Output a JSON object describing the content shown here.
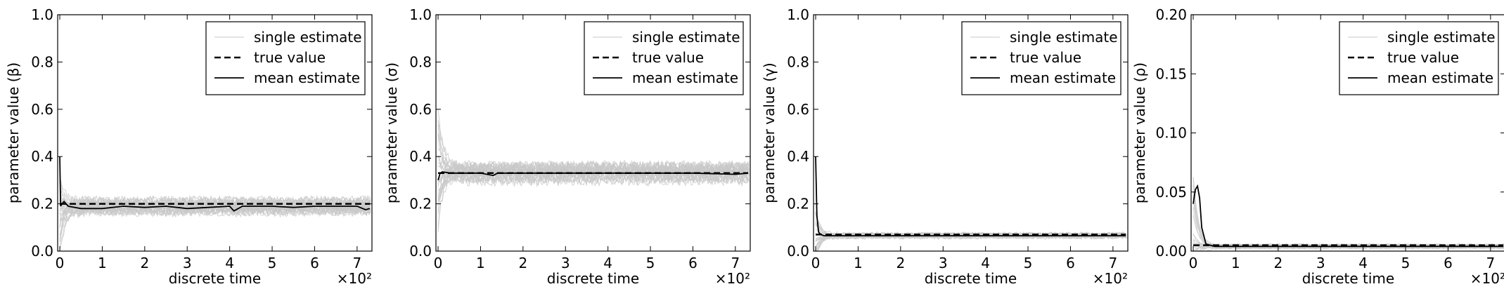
{
  "chart_data": [
    {
      "type": "line",
      "xlabel": "discrete time",
      "ylabel": "parameter value (β)",
      "ylabel_symbol": "β",
      "x_scale_text": "×10²",
      "xlim": [
        -0.05,
        7.35
      ],
      "ylim": [
        0.0,
        1.0
      ],
      "xticks": [
        "0",
        "1",
        "2",
        "3",
        "4",
        "5",
        "6",
        "7"
      ],
      "yticks": [
        "0.0",
        "0.2",
        "0.4",
        "0.6",
        "0.8",
        "1.0"
      ],
      "legend": [
        "single estimate",
        "true value",
        "mean estimate"
      ],
      "legend_position": "top-right",
      "grid": false,
      "true_value": 0.2,
      "mean_estimate": {
        "x": [
          0,
          0.02,
          0.05,
          0.1,
          0.2,
          0.5,
          1,
          1.5,
          2,
          2.5,
          3,
          3.5,
          4,
          4.1,
          4.3,
          4.5,
          5,
          5.5,
          6,
          6.5,
          7,
          7.2,
          7.3
        ],
        "y": [
          0.4,
          0.19,
          0.2,
          0.21,
          0.19,
          0.18,
          0.18,
          0.19,
          0.185,
          0.19,
          0.18,
          0.185,
          0.19,
          0.17,
          0.19,
          0.19,
          0.19,
          0.185,
          0.19,
          0.19,
          0.19,
          0.175,
          0.18
        ]
      },
      "single_estimates_band": {
        "center": 0.19,
        "half_width": 0.04,
        "early_spread": 0.2
      },
      "colors": {
        "single": "#c8c8c8",
        "true": "#000000",
        "mean": "#000000"
      }
    },
    {
      "type": "line",
      "xlabel": "discrete time",
      "ylabel": "parameter value (σ)",
      "ylabel_symbol": "σ",
      "x_scale_text": "×10²",
      "xlim": [
        -0.05,
        7.35
      ],
      "ylim": [
        0.0,
        1.0
      ],
      "xticks": [
        "0",
        "1",
        "2",
        "3",
        "4",
        "5",
        "6",
        "7"
      ],
      "yticks": [
        "0.0",
        "0.2",
        "0.4",
        "0.6",
        "0.8",
        "1.0"
      ],
      "legend": [
        "single estimate",
        "true value",
        "mean estimate"
      ],
      "legend_position": "top-right",
      "grid": false,
      "true_value": 0.33,
      "mean_estimate": {
        "x": [
          0,
          0.05,
          0.1,
          0.3,
          0.6,
          1,
          1.3,
          1.4,
          2,
          3,
          4,
          5,
          6,
          7,
          7.3
        ],
        "y": [
          0.3,
          0.33,
          0.335,
          0.33,
          0.33,
          0.33,
          0.32,
          0.33,
          0.33,
          0.33,
          0.33,
          0.33,
          0.33,
          0.325,
          0.33
        ]
      },
      "single_estimates_band": {
        "center": 0.33,
        "half_width": 0.05,
        "early_spread": 0.25
      },
      "colors": {
        "single": "#c8c8c8",
        "true": "#000000",
        "mean": "#000000"
      }
    },
    {
      "type": "line",
      "xlabel": "discrete time",
      "ylabel": "parameter value (γ)",
      "ylabel_symbol": "γ",
      "x_scale_text": "×10²",
      "xlim": [
        -0.05,
        7.35
      ],
      "ylim": [
        0.0,
        1.0
      ],
      "xticks": [
        "0",
        "1",
        "2",
        "3",
        "4",
        "5",
        "6",
        "7"
      ],
      "yticks": [
        "0.0",
        "0.2",
        "0.4",
        "0.6",
        "0.8",
        "1.0"
      ],
      "legend": [
        "single estimate",
        "true value",
        "mean estimate"
      ],
      "legend_position": "top-right",
      "grid": false,
      "true_value": 0.07,
      "mean_estimate": {
        "x": [
          0,
          0.03,
          0.07,
          0.12,
          0.2,
          0.5,
          1,
          2,
          3,
          4,
          5,
          6,
          7,
          7.3
        ],
        "y": [
          0.4,
          0.15,
          0.08,
          0.07,
          0.065,
          0.065,
          0.065,
          0.065,
          0.065,
          0.065,
          0.065,
          0.065,
          0.065,
          0.065
        ]
      },
      "single_estimates_band": {
        "center": 0.065,
        "half_width": 0.015,
        "early_spread": 0.1
      },
      "colors": {
        "single": "#c8c8c8",
        "true": "#000000",
        "mean": "#000000"
      }
    },
    {
      "type": "line",
      "xlabel": "discrete time",
      "ylabel": "parameter value (ρ)",
      "ylabel_symbol": "ρ",
      "x_scale_text": "×10²",
      "xlim": [
        -0.05,
        7.35
      ],
      "ylim": [
        0.0,
        0.2
      ],
      "xticks": [
        "0",
        "1",
        "2",
        "3",
        "4",
        "5",
        "6",
        "7"
      ],
      "yticks": [
        "0.00",
        "0.05",
        "0.10",
        "0.15",
        "0.20"
      ],
      "legend": [
        "single estimate",
        "true value",
        "mean estimate"
      ],
      "legend_position": "top-right",
      "grid": false,
      "true_value": 0.005,
      "mean_estimate": {
        "x": [
          0,
          0.05,
          0.1,
          0.15,
          0.2,
          0.3,
          0.5,
          1,
          2,
          3,
          4,
          5,
          6,
          7,
          7.3
        ],
        "y": [
          0.04,
          0.052,
          0.055,
          0.045,
          0.02,
          0.006,
          0.004,
          0.004,
          0.004,
          0.004,
          0.004,
          0.004,
          0.004,
          0.004,
          0.004
        ]
      },
      "single_estimates_band": {
        "center": 0.004,
        "half_width": 0.002,
        "early_spread": 0.06
      },
      "colors": {
        "single": "#c8c8c8",
        "true": "#000000",
        "mean": "#000000"
      }
    }
  ]
}
